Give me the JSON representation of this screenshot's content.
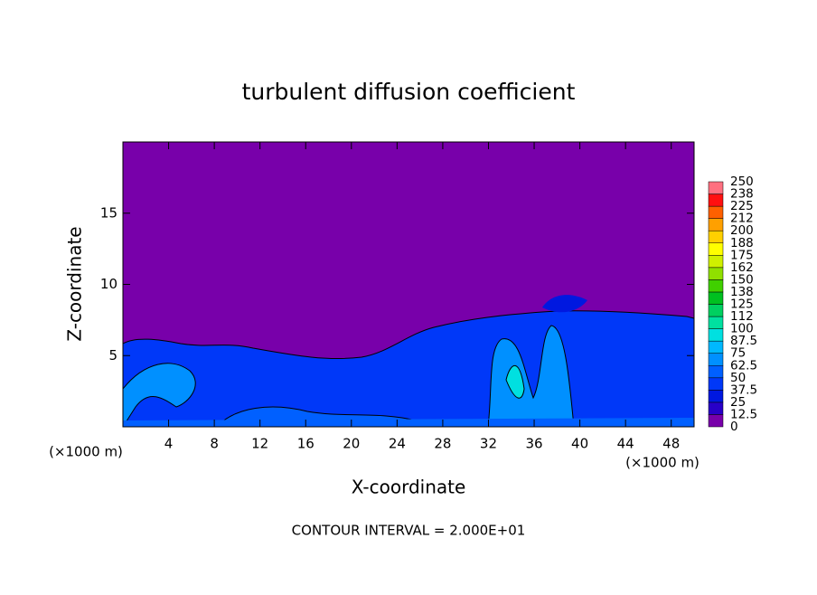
{
  "chart_data": {
    "type": "contour",
    "title": "turbulent diffusion coefficient",
    "xlabel": "X-coordinate",
    "ylabel": "Z-coordinate",
    "x_unit_left": "(×1000 m)",
    "x_unit_right": "(×1000 m)",
    "footnote": "CONTOUR INTERVAL = 2.000E+01",
    "xlim": [
      0,
      50
    ],
    "xticks": [
      4,
      8,
      12,
      16,
      20,
      24,
      28,
      32,
      36,
      40,
      44,
      48
    ],
    "ylim": [
      0,
      20
    ],
    "yticks": [
      5,
      10,
      15
    ],
    "colorbar": {
      "ticks": [
        0,
        12.5,
        25,
        37.5,
        50,
        62.5,
        75,
        87.5,
        100,
        112,
        125,
        138,
        150,
        162,
        175,
        188,
        200,
        212,
        225,
        238,
        250
      ],
      "colors": [
        "#7800aa",
        "#2800c8",
        "#0018e0",
        "#0038f8",
        "#0060ff",
        "#0090ff",
        "#00b8ff",
        "#00e0e0",
        "#00e0a0",
        "#00d060",
        "#00c020",
        "#40d000",
        "#90e000",
        "#d0f000",
        "#ffff00",
        "#ffd000",
        "#ffa000",
        "#ff6000",
        "#ff1010",
        "#ff7080"
      ]
    }
  }
}
